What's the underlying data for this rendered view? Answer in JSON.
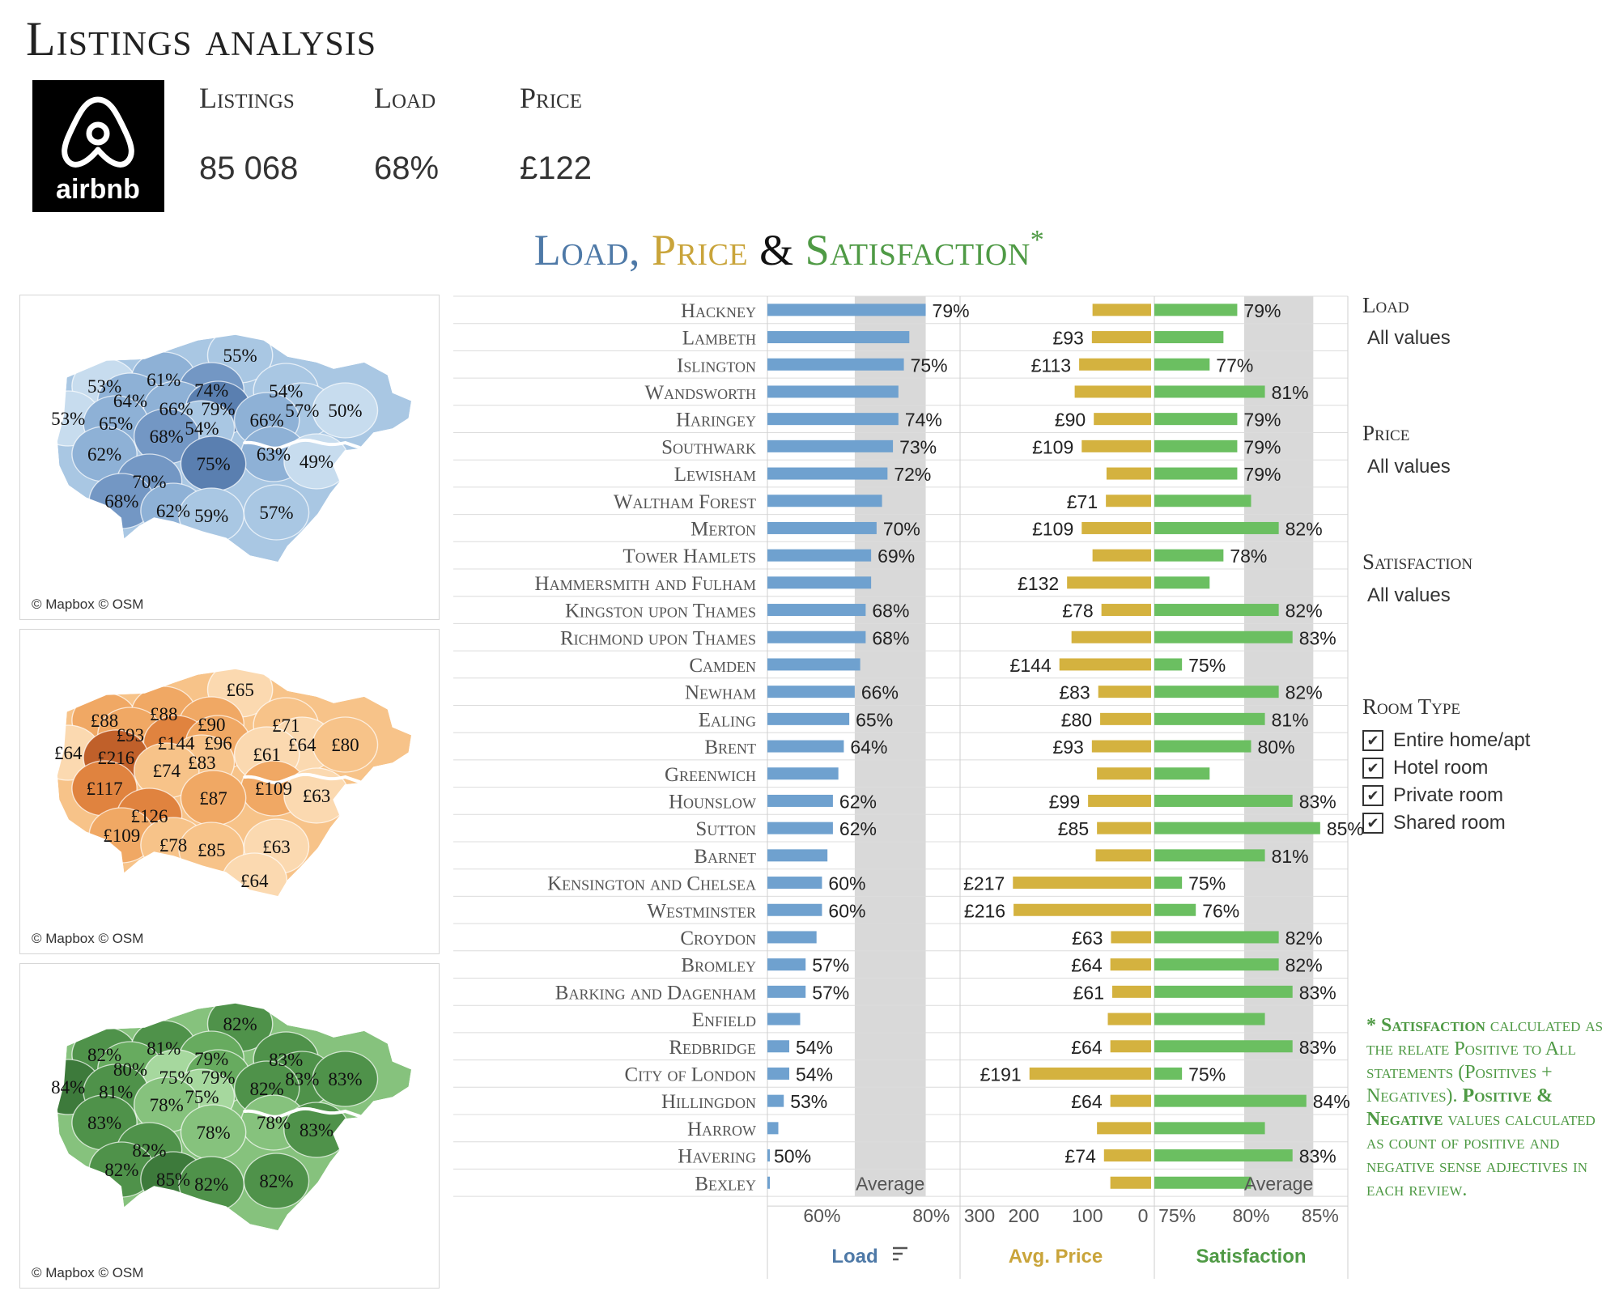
{
  "page_title": "Listings analysis",
  "logo": {
    "icon": "airbnb-logo-icon",
    "text": "airbnb"
  },
  "kpis": [
    {
      "label": "Listings",
      "value": "85 068"
    },
    {
      "label": "Load",
      "value": "68%"
    },
    {
      "label": "Price",
      "value": "£122"
    }
  ],
  "subtitle": {
    "load": "Load,",
    "price": "Price",
    "amp": "&",
    "sat": "Satisfaction",
    "star": "*"
  },
  "colors": {
    "load": "#4e79a7",
    "load_bar": "#6fa1cf",
    "price": "#c9a43a",
    "price_bar": "#d4b23f",
    "sat": "#4f9a45",
    "sat_bar": "#6bbf61",
    "average_band": "#d9d9d9"
  },
  "maps": [
    {
      "name": "load-map",
      "credit": "© Mapbox © OSM",
      "labels": [
        "55%",
        "53%",
        "61%",
        "74%",
        "54%",
        "53%",
        "64%",
        "66%",
        "79%",
        "57%",
        "50%",
        "65%",
        "54%",
        "66%",
        "68%",
        "62%",
        "63%",
        "75%",
        "49%",
        "70%",
        "68%",
        "62%",
        "59%",
        "57%"
      ]
    },
    {
      "name": "price-map",
      "credit": "© Mapbox © OSM",
      "labels": [
        "£65",
        "£88",
        "£88",
        "£90",
        "£71",
        "£64",
        "£93",
        "£144",
        "£96",
        "£64",
        "£80",
        "£216",
        "£83",
        "£61",
        "£74",
        "£117",
        "£109",
        "£87",
        "£63",
        "£126",
        "£109",
        "£78",
        "£85",
        "£63",
        "£64"
      ]
    },
    {
      "name": "satisfaction-map",
      "credit": "© Mapbox © OSM",
      "labels": [
        "82%",
        "82%",
        "81%",
        "79%",
        "83%",
        "84%",
        "80%",
        "75%",
        "79%",
        "83%",
        "83%",
        "81%",
        "75%",
        "82%",
        "78%",
        "83%",
        "78%",
        "78%",
        "83%",
        "82%",
        "82%",
        "85%",
        "82%",
        "82%"
      ]
    }
  ],
  "chart_data": {
    "type": "bar",
    "categories": [
      "Hackney",
      "Lambeth",
      "Islington",
      "Wandsworth",
      "Haringey",
      "Southwark",
      "Lewisham",
      "Waltham Forest",
      "Merton",
      "Tower Hamlets",
      "Hammersmith and Fulham",
      "Kingston upon Thames",
      "Richmond upon Thames",
      "Camden",
      "Newham",
      "Ealing",
      "Brent",
      "Greenwich",
      "Hounslow",
      "Sutton",
      "Barnet",
      "Kensington and Chelsea",
      "Westminster",
      "Croydon",
      "Bromley",
      "Barking and Dagenham",
      "Enfield",
      "Redbridge",
      "City of London",
      "Hillingdon",
      "Harrow",
      "Havering",
      "Bexley"
    ],
    "series": [
      {
        "name": "Load",
        "values": [
          79,
          76,
          75,
          74,
          74,
          73,
          72,
          71,
          70,
          69,
          69,
          68,
          68,
          67,
          66,
          65,
          64,
          63,
          62,
          62,
          61,
          60,
          60,
          59,
          57,
          57,
          56,
          54,
          54,
          53,
          52,
          50,
          48
        ],
        "labels": [
          "79%",
          "",
          "75%",
          "",
          "74%",
          "73%",
          "72%",
          "",
          "70%",
          "69%",
          "",
          "68%",
          "68%",
          "",
          "66%",
          "65%",
          "64%",
          "",
          "62%",
          "62%",
          "",
          "60%",
          "60%",
          "",
          "57%",
          "57%",
          "",
          "54%",
          "54%",
          "53%",
          "",
          "50%",
          ""
        ]
      },
      {
        "name": "Avg. Price",
        "values": [
          92,
          93,
          113,
          120,
          90,
          109,
          70,
          71,
          109,
          92,
          132,
          78,
          125,
          144,
          83,
          80,
          93,
          85,
          99,
          85,
          87,
          217,
          216,
          63,
          64,
          61,
          68,
          64,
          191,
          64,
          85,
          74,
          64
        ],
        "labels": [
          "",
          "£93",
          "£113",
          "",
          "£90",
          "£109",
          "",
          "£71",
          "£109",
          "",
          "£132",
          "£78",
          "",
          "£144",
          "£83",
          "£80",
          "£93",
          "",
          "£99",
          "£85",
          "",
          "£217",
          "£216",
          "£63",
          "£64",
          "£61",
          "",
          "£64",
          "£191",
          "£64",
          "",
          "£74",
          ""
        ]
      },
      {
        "name": "Satisfaction",
        "values": [
          79,
          78,
          77,
          81,
          79,
          79,
          79,
          80,
          82,
          78,
          77,
          82,
          83,
          75,
          82,
          81,
          80,
          77,
          83,
          85,
          81,
          75,
          76,
          82,
          82,
          83,
          81,
          83,
          75,
          84,
          81,
          83,
          80
        ],
        "labels": [
          "79%",
          "",
          "77%",
          "81%",
          "79%",
          "79%",
          "79%",
          "",
          "82%",
          "78%",
          "",
          "82%",
          "83%",
          "75%",
          "82%",
          "81%",
          "80%",
          "",
          "83%",
          "85%",
          "81%",
          "75%",
          "76%",
          "82%",
          "82%",
          "83%",
          "",
          "83%",
          "75%",
          "84%",
          "",
          "83%",
          ""
        ]
      }
    ],
    "panels": [
      {
        "title": "Load",
        "ticks": [
          "60%",
          "80%"
        ],
        "xlim": [
          50,
          85
        ],
        "average_band": [
          66,
          79
        ],
        "average_label": "Average",
        "sort_icon": "sort-descending-icon"
      },
      {
        "title": "Avg. Price",
        "ticks": [
          "300",
          "200",
          "100",
          "0"
        ],
        "xlim": [
          0,
          300
        ],
        "reversed": true
      },
      {
        "title": "Satisfaction",
        "ticks": [
          "75%",
          "80%",
          "85%"
        ],
        "xlim": [
          73,
          87
        ],
        "average_band": [
          79.5,
          84.5
        ],
        "average_label": "Average"
      }
    ]
  },
  "filters": [
    {
      "title": "Load",
      "value": "All values"
    },
    {
      "title": "Price",
      "value": "All values"
    },
    {
      "title": "Satisfaction",
      "value": "All values"
    }
  ],
  "room_type": {
    "title": "Room Type",
    "items": [
      {
        "label": "Entire home/apt",
        "checked": true
      },
      {
        "label": "Hotel room",
        "checked": true
      },
      {
        "label": "Private room",
        "checked": true
      },
      {
        "label": "Shared room",
        "checked": true
      }
    ]
  },
  "footnote": {
    "star": "* ",
    "sat_word": "Satisfaction",
    "text1": " calculated as the relate Positive to All statements (Positives + Negatives). ",
    "pos_neg": "Positive & Negative",
    "text2": " values calculated as count of positive and negative sense adjectives in each review."
  }
}
